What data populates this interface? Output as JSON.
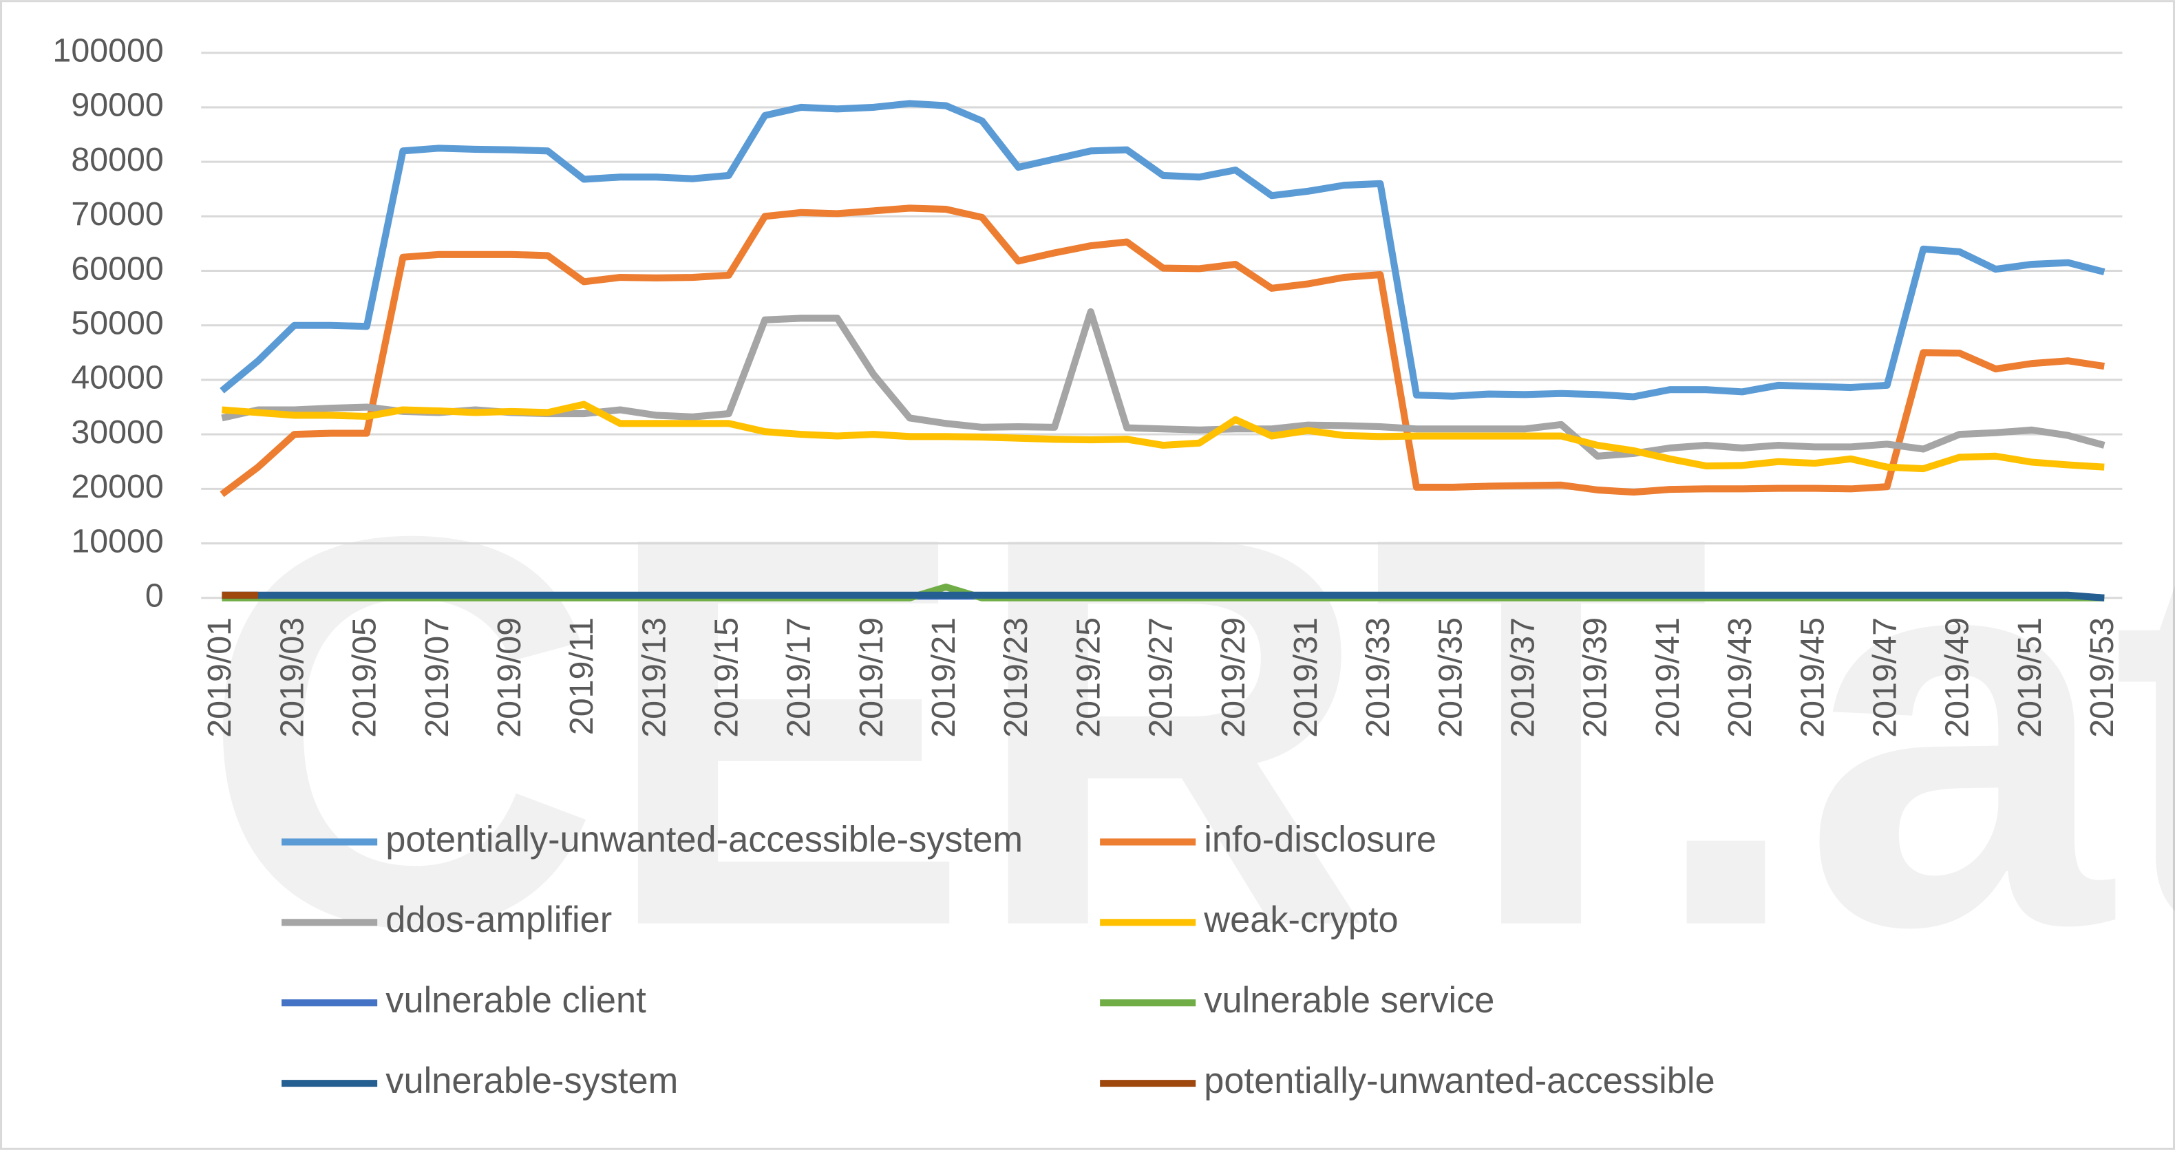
{
  "watermark": "CERT.at",
  "chart_data": {
    "type": "line",
    "categories": [
      "2019/01",
      null,
      "2019/03",
      null,
      "2019/05",
      null,
      "2019/07",
      null,
      "2019/09",
      null,
      "2019/11",
      null,
      "2019/13",
      null,
      "2019/15",
      null,
      "2019/17",
      null,
      "2019/19",
      null,
      "2019/21",
      null,
      "2019/23",
      null,
      "2019/25",
      null,
      "2019/27",
      null,
      "2019/29",
      null,
      "2019/31",
      null,
      "2019/33",
      null,
      "2019/35",
      null,
      "2019/37",
      null,
      "2019/39",
      null,
      "2019/41",
      null,
      "2019/43",
      null,
      "2019/45",
      null,
      "2019/47",
      null,
      "2019/49",
      null,
      "2019/51",
      null,
      "2019/53"
    ],
    "ylim": [
      0,
      100000
    ],
    "yticks": [
      0,
      10000,
      20000,
      30000,
      40000,
      50000,
      60000,
      70000,
      80000,
      90000,
      100000
    ],
    "grid": true,
    "legend": "bottom",
    "series": [
      {
        "name": "potentially-unwanted-accessible-system",
        "color": "#5b9bd5",
        "values": [
          38000,
          43500,
          50000,
          50000,
          49800,
          82000,
          82500,
          82300,
          82200,
          82000,
          76800,
          77200,
          77200,
          76900,
          77500,
          88500,
          90000,
          89700,
          90000,
          90700,
          90300,
          87500,
          79000,
          80500,
          82000,
          82200,
          77500,
          77200,
          78500,
          73800,
          74600,
          75700,
          76000,
          37200,
          37000,
          37400,
          37300,
          37500,
          37300,
          36900,
          38200,
          38200,
          37800,
          39000,
          38800,
          38600,
          39000,
          64000,
          63500,
          60300,
          61200,
          61500,
          59800
        ]
      },
      {
        "name": "info-disclosure",
        "color": "#ed7d31",
        "values": [
          19000,
          24000,
          30000,
          30200,
          30200,
          62500,
          63000,
          63000,
          63000,
          62800,
          58000,
          58800,
          58700,
          58800,
          59200,
          70000,
          70700,
          70500,
          71000,
          71500,
          71300,
          69800,
          61800,
          63300,
          64600,
          65300,
          60500,
          60400,
          61200,
          56800,
          57600,
          58800,
          59300,
          20300,
          20300,
          20500,
          20600,
          20700,
          19800,
          19400,
          19900,
          20000,
          20000,
          20100,
          20100,
          20000,
          20400,
          45000,
          44900,
          42000,
          43000,
          43500,
          42500
        ]
      },
      {
        "name": "ddos-amplifier",
        "color": "#a5a5a5",
        "values": [
          33000,
          34500,
          34500,
          34800,
          35000,
          34200,
          34000,
          34500,
          34000,
          33800,
          33800,
          34500,
          33500,
          33200,
          33800,
          51000,
          51300,
          51300,
          41000,
          33000,
          32000,
          31300,
          31400,
          31300,
          52500,
          31200,
          31000,
          30800,
          31000,
          31000,
          31700,
          31600,
          31400,
          31000,
          31000,
          31000,
          31000,
          31800,
          26000,
          26500,
          27500,
          28000,
          27500,
          28000,
          27700,
          27700,
          28200,
          27300,
          30000,
          30300,
          30800,
          29800,
          28000
        ]
      },
      {
        "name": "weak-crypto",
        "color": "#ffc000",
        "values": [
          34500,
          34000,
          33500,
          33500,
          33300,
          34500,
          34300,
          34000,
          34200,
          34000,
          35500,
          32000,
          32000,
          32000,
          32000,
          30500,
          30000,
          29700,
          30000,
          29600,
          29600,
          29500,
          29300,
          29100,
          29000,
          29100,
          28000,
          28400,
          32700,
          29700,
          30700,
          29800,
          29600,
          29700,
          29700,
          29700,
          29700,
          29700,
          28000,
          27000,
          25500,
          24200,
          24300,
          25000,
          24700,
          25500,
          24000,
          23700,
          25800,
          26000,
          24900,
          24400,
          24000
        ]
      },
      {
        "name": "vulnerable client",
        "color": "#4472c4",
        "values": [
          300,
          300,
          300,
          300,
          300,
          300,
          300,
          300,
          300,
          300,
          300,
          300,
          300,
          300,
          300,
          300,
          300,
          300,
          300,
          300,
          300,
          300,
          300,
          300,
          300,
          300,
          300,
          300,
          300,
          300,
          300,
          300,
          300,
          300,
          300,
          300,
          300,
          300,
          300,
          300,
          300,
          300,
          300,
          300,
          300,
          300,
          300,
          300,
          300,
          300,
          300,
          300,
          0
        ]
      },
      {
        "name": "vulnerable service",
        "color": "#70ad47",
        "values": [
          0,
          0,
          0,
          0,
          0,
          0,
          0,
          0,
          0,
          0,
          0,
          0,
          0,
          0,
          0,
          0,
          0,
          0,
          0,
          0,
          2000,
          0,
          0,
          0,
          0,
          0,
          0,
          0,
          0,
          0,
          0,
          0,
          0,
          0,
          0,
          0,
          0,
          0,
          0,
          0,
          0,
          0,
          0,
          0,
          0,
          0,
          0,
          0,
          0,
          0,
          0,
          0,
          0
        ]
      },
      {
        "name": "vulnerable-system",
        "color": "#255e91",
        "values": [
          500,
          500,
          500,
          500,
          500,
          500,
          500,
          500,
          500,
          500,
          500,
          500,
          500,
          500,
          500,
          500,
          500,
          500,
          500,
          500,
          500,
          500,
          500,
          500,
          500,
          500,
          500,
          500,
          500,
          500,
          500,
          500,
          500,
          500,
          500,
          500,
          500,
          500,
          500,
          500,
          500,
          500,
          500,
          500,
          500,
          500,
          500,
          500,
          500,
          500,
          500,
          500,
          0
        ]
      },
      {
        "name": "potentially-unwanted-accessible",
        "color": "#9e480e",
        "values": [
          500,
          500,
          null,
          null,
          null,
          null,
          null,
          null,
          null,
          null,
          null,
          null,
          null,
          null,
          null,
          null,
          null,
          null,
          null,
          null,
          null,
          null,
          null,
          null,
          null,
          null,
          null,
          null,
          null,
          null,
          null,
          null,
          null,
          null,
          null,
          null,
          null,
          null,
          null,
          null,
          null,
          null,
          null,
          null,
          null,
          null,
          null,
          null,
          null,
          null,
          null,
          null,
          null
        ]
      }
    ]
  }
}
